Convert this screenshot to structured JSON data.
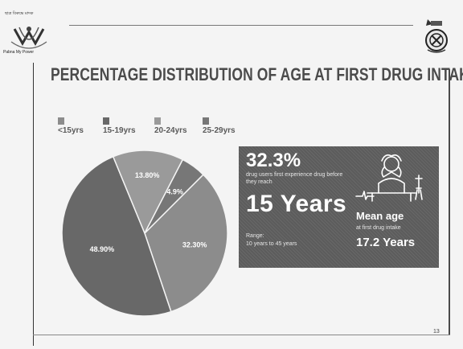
{
  "header": {
    "logo_top_text": "ছাত্ৰ বিৰুদ্ধে মাদক",
    "logo_bottom_text": "Pabna My Power"
  },
  "title": "PERCENTAGE DISTRIBUTION OF AGE AT FIRST DRUG INTAKE",
  "colors": {
    "c_under15": "#8c8c8c",
    "c_15_19": "#686868",
    "c_20_24": "#9a9a9a",
    "c_25_29": "#777777",
    "info_box": "#5c5c5c"
  },
  "chart_data": {
    "type": "pie",
    "title": "PERCENTAGE DISTRIBUTION OF AGE AT FIRST DRUG INTAKE",
    "categories": [
      "<15yrs",
      "15-19yrs",
      "20-24yrs",
      "25-29yrs"
    ],
    "values": [
      32.3,
      48.9,
      13.8,
      4.9
    ],
    "labels": [
      "32.30%",
      "48.90%",
      "13.80%",
      "4.9%"
    ],
    "legend_position": "top"
  },
  "info": {
    "stat_percent": "32.3%",
    "stat_desc": "drug users first experience drug before they reach",
    "years": "15 Years",
    "range_label": "Range:",
    "range_value": "10 years to 45 years",
    "mean_label": "Mean age",
    "mean_desc": "at first drug intake",
    "mean_value": "17.2 Years",
    "figure_icon": "distressed-person-icon"
  },
  "footer": {
    "page_number": "13"
  }
}
